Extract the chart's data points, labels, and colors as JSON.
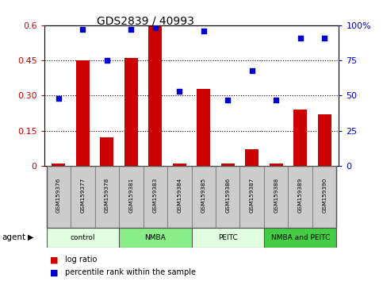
{
  "title": "GDS2839 / 40993",
  "samples": [
    "GSM159376",
    "GSM159377",
    "GSM159378",
    "GSM159381",
    "GSM159383",
    "GSM159384",
    "GSM159385",
    "GSM159386",
    "GSM159387",
    "GSM159388",
    "GSM159389",
    "GSM159390"
  ],
  "log_ratio": [
    0.01,
    0.45,
    0.12,
    0.46,
    0.6,
    0.01,
    0.33,
    0.01,
    0.07,
    0.01,
    0.24,
    0.22
  ],
  "percentile_rank": [
    48,
    97,
    75,
    97,
    98,
    53,
    96,
    47,
    68,
    47,
    91,
    91
  ],
  "groups": [
    {
      "label": "control",
      "start": 0,
      "end": 3,
      "color": "#dfffdf"
    },
    {
      "label": "NMBA",
      "start": 3,
      "end": 6,
      "color": "#88ee88"
    },
    {
      "label": "PEITC",
      "start": 6,
      "end": 9,
      "color": "#dfffdf"
    },
    {
      "label": "NMBA and PEITC",
      "start": 9,
      "end": 12,
      "color": "#44cc44"
    }
  ],
  "bar_color": "#cc0000",
  "dot_color": "#0000cc",
  "ylim_left": [
    0,
    0.6
  ],
  "ylim_right": [
    0,
    100
  ],
  "yticks_left": [
    0,
    0.15,
    0.3,
    0.45,
    0.6
  ],
  "yticks_right": [
    0,
    25,
    50,
    75,
    100
  ],
  "ytick_labels_left": [
    "0",
    "0.15",
    "0.30",
    "0.45",
    "0.6"
  ],
  "ytick_labels_right": [
    "0",
    "25",
    "50",
    "75",
    "100%"
  ],
  "grid_values": [
    0.15,
    0.3,
    0.45
  ],
  "legend_log_ratio": "log ratio",
  "legend_percentile": "percentile rank within the sample",
  "agent_label": "agent",
  "bar_width": 0.55,
  "ylabel_fontsize": 8,
  "title_fontsize": 10
}
